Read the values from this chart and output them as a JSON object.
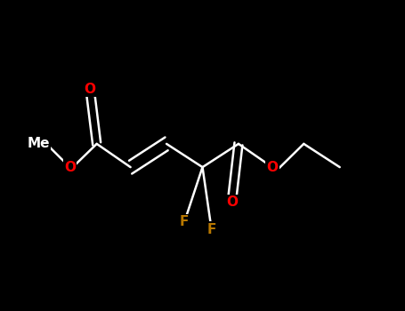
{
  "background_color": "#000000",
  "bond_color": "#ffffff",
  "O_color": "#ff0000",
  "F_color": "#b87800",
  "figsize": [
    4.55,
    3.5
  ],
  "dpi": 100,
  "atoms": {
    "me_x": 0.85,
    "me_y": 3.65,
    "o1_x": 1.55,
    "o1_y": 3.35,
    "c1_x": 2.15,
    "c1_y": 3.65,
    "o1d_x": 2.0,
    "o1d_y": 4.35,
    "c2_x": 2.9,
    "c2_y": 3.35,
    "c3_x": 3.7,
    "c3_y": 3.65,
    "cf2_x": 4.5,
    "cf2_y": 3.35,
    "f1_x": 4.1,
    "f1_y": 2.65,
    "f2_x": 4.7,
    "f2_y": 2.55,
    "c5_x": 5.3,
    "c5_y": 3.65,
    "o2u_x": 5.15,
    "o2u_y": 2.9,
    "o2_x": 6.05,
    "o2_y": 3.35,
    "et1_x": 6.75,
    "et1_y": 3.65,
    "et2_x": 7.55,
    "et2_y": 3.35
  },
  "lw": 1.8,
  "fontsize": 11,
  "xlim": [
    0,
    9
  ],
  "ylim": [
    1.5,
    5.5
  ]
}
